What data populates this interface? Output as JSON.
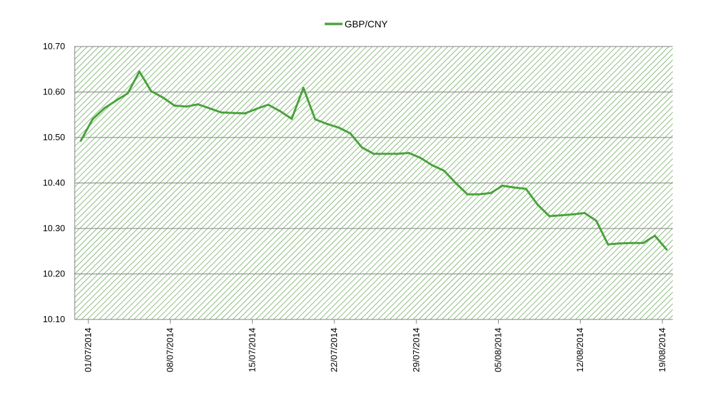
{
  "chart_data": {
    "type": "line",
    "legend": {
      "position": "top",
      "entries": [
        "GBP/CNY"
      ]
    },
    "ylim": [
      10.1,
      10.7
    ],
    "y_ticks": [
      "10.70",
      "10.60",
      "10.50",
      "10.40",
      "10.30",
      "10.20",
      "10.10"
    ],
    "y_tick_values": [
      10.7,
      10.6,
      10.5,
      10.4,
      10.3,
      10.2,
      10.1
    ],
    "x_tick_labels": [
      "01/07/2014",
      "08/07/2014",
      "15/07/2014",
      "22/07/2014",
      "29/07/2014",
      "05/08/2014",
      "12/08/2014",
      "19/08/2014"
    ],
    "grid": true,
    "series": [
      {
        "name": "GBP/CNY",
        "color": "#4aa23c",
        "x": [
          "01/07/2014",
          "02/07/2014",
          "03/07/2014",
          "04/07/2014",
          "05/07/2014",
          "06/07/2014",
          "07/07/2014",
          "08/07/2014",
          "09/07/2014",
          "10/07/2014",
          "11/07/2014",
          "12/07/2014",
          "13/07/2014",
          "14/07/2014",
          "15/07/2014",
          "16/07/2014",
          "17/07/2014",
          "18/07/2014",
          "19/07/2014",
          "20/07/2014",
          "21/07/2014",
          "22/07/2014",
          "23/07/2014",
          "24/07/2014",
          "25/07/2014",
          "26/07/2014",
          "27/07/2014",
          "28/07/2014",
          "29/07/2014",
          "30/07/2014",
          "31/07/2014",
          "01/08/2014",
          "02/08/2014",
          "03/08/2014",
          "04/08/2014",
          "05/08/2014",
          "06/08/2014",
          "07/08/2014",
          "08/08/2014",
          "09/08/2014",
          "10/08/2014",
          "11/08/2014",
          "12/08/2014",
          "13/08/2014",
          "14/08/2014",
          "15/08/2014",
          "16/08/2014",
          "17/08/2014",
          "18/08/2014",
          "19/08/2014",
          "20/08/2014"
        ],
        "values": [
          10.493,
          10.54,
          10.564,
          10.581,
          10.597,
          10.645,
          10.602,
          10.588,
          10.57,
          10.568,
          10.573,
          10.564,
          10.555,
          10.554,
          10.553,
          10.563,
          10.572,
          10.558,
          10.541,
          10.609,
          10.54,
          10.53,
          10.522,
          10.509,
          10.478,
          10.464,
          10.464,
          10.464,
          10.466,
          10.455,
          10.439,
          10.427,
          10.4,
          10.375,
          10.375,
          10.378,
          10.394,
          10.39,
          10.387,
          10.352,
          10.327,
          10.329,
          10.331,
          10.334,
          10.317,
          10.265,
          10.267,
          10.268,
          10.268,
          10.284,
          10.254
        ]
      }
    ]
  }
}
